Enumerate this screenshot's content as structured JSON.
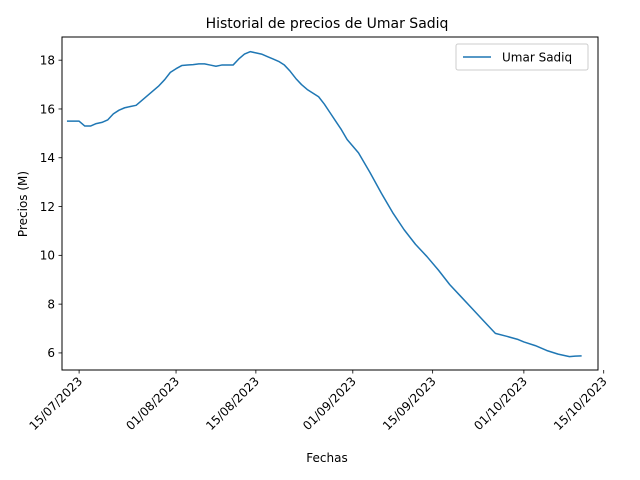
{
  "chart_data": {
    "type": "line",
    "title": "Historial de precios de Umar Sadiq",
    "xlabel": "Fechas",
    "ylabel": "Precios (M)",
    "x_tick_labels": [
      "15/07/2023",
      "01/08/2023",
      "15/08/2023",
      "01/09/2023",
      "15/09/2023",
      "01/10/2023",
      "15/10/2023"
    ],
    "y_tick_labels": [
      "6",
      "8",
      "10",
      "12",
      "14",
      "16",
      "18"
    ],
    "ylim": [
      5.3,
      18.95
    ],
    "xlim": [
      "2023-07-12",
      "2023-10-14"
    ],
    "legend_position": "top-right",
    "series": [
      {
        "name": "Umar Sadiq",
        "color": "#1f77b4",
        "x": [
          "2023-07-13",
          "2023-07-15",
          "2023-07-16",
          "2023-07-17",
          "2023-07-18",
          "2023-07-19",
          "2023-07-20",
          "2023-07-21",
          "2023-07-22",
          "2023-07-23",
          "2023-07-24",
          "2023-07-25",
          "2023-07-26",
          "2023-07-27",
          "2023-07-28",
          "2023-07-29",
          "2023-07-30",
          "2023-07-31",
          "2023-08-01",
          "2023-08-02",
          "2023-08-03",
          "2023-08-04",
          "2023-08-05",
          "2023-08-06",
          "2023-08-07",
          "2023-08-08",
          "2023-08-09",
          "2023-08-10",
          "2023-08-11",
          "2023-08-12",
          "2023-08-13",
          "2023-08-14",
          "2023-08-15",
          "2023-08-16",
          "2023-08-17",
          "2023-08-18",
          "2023-08-19",
          "2023-08-20",
          "2023-08-21",
          "2023-08-22",
          "2023-08-23",
          "2023-08-24",
          "2023-08-25",
          "2023-08-26",
          "2023-08-27",
          "2023-08-28",
          "2023-08-29",
          "2023-08-30",
          "2023-08-31",
          "2023-09-02",
          "2023-09-04",
          "2023-09-06",
          "2023-09-08",
          "2023-09-10",
          "2023-09-12",
          "2023-09-14",
          "2023-09-16",
          "2023-09-18",
          "2023-09-20",
          "2023-09-22",
          "2023-09-24",
          "2023-09-26",
          "2023-09-28",
          "2023-09-30",
          "2023-10-01",
          "2023-10-03",
          "2023-10-05",
          "2023-10-07",
          "2023-10-08",
          "2023-10-09",
          "2023-10-10",
          "2023-10-11"
        ],
        "y": [
          15.5,
          15.5,
          15.3,
          15.3,
          15.4,
          15.45,
          15.55,
          15.8,
          15.95,
          16.05,
          16.1,
          16.15,
          16.35,
          16.55,
          16.75,
          16.95,
          17.2,
          17.5,
          17.65,
          17.78,
          17.8,
          17.82,
          17.85,
          17.85,
          17.8,
          17.75,
          17.8,
          17.8,
          17.8,
          18.05,
          18.25,
          18.35,
          18.3,
          18.25,
          18.15,
          18.05,
          17.95,
          17.8,
          17.55,
          17.25,
          17.0,
          16.8,
          16.65,
          16.5,
          16.2,
          15.85,
          15.5,
          15.15,
          14.75,
          14.2,
          13.4,
          12.55,
          11.75,
          11.05,
          10.45,
          9.95,
          9.4,
          8.8,
          8.3,
          7.8,
          7.3,
          6.8,
          6.68,
          6.55,
          6.45,
          6.3,
          6.1,
          5.95,
          5.9,
          5.85,
          5.87,
          5.88
        ]
      }
    ]
  }
}
